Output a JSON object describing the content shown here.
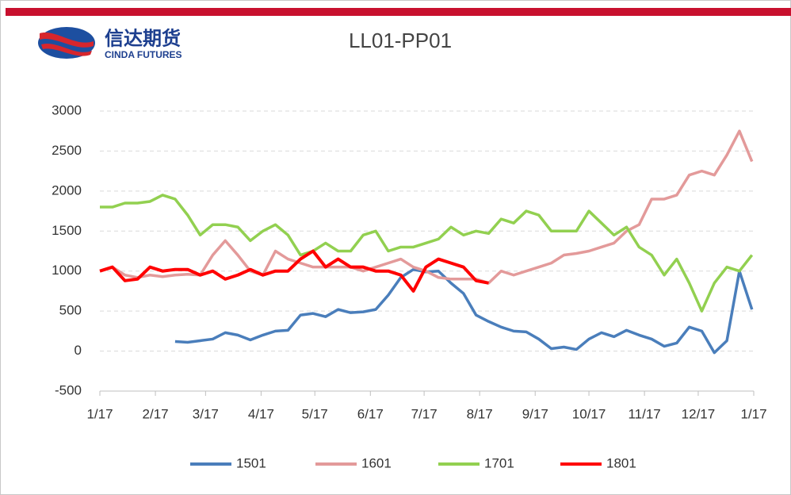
{
  "logo": {
    "name": "信达期货",
    "subname": "CINDA FUTURES"
  },
  "chart_data": {
    "type": "line",
    "title": "LL01-PP01",
    "x": [
      0,
      7,
      14,
      21,
      28,
      35,
      42,
      49,
      56,
      63,
      70,
      77,
      84,
      91,
      98,
      105,
      112,
      119,
      126,
      133,
      140,
      147,
      154,
      161,
      168,
      175,
      182,
      189,
      196,
      203,
      210,
      217,
      224,
      231,
      238,
      245,
      252,
      259,
      266,
      273,
      280,
      287,
      294,
      301,
      308,
      315,
      322,
      329,
      336,
      343,
      350,
      357,
      364
    ],
    "xlim": [
      0,
      365
    ],
    "xticks": [
      {
        "value": 0,
        "label": "1/17"
      },
      {
        "value": 31,
        "label": "2/17"
      },
      {
        "value": 59,
        "label": "3/17"
      },
      {
        "value": 90,
        "label": "4/17"
      },
      {
        "value": 120,
        "label": "5/17"
      },
      {
        "value": 151,
        "label": "6/17"
      },
      {
        "value": 181,
        "label": "7/17"
      },
      {
        "value": 212,
        "label": "8/17"
      },
      {
        "value": 243,
        "label": "9/17"
      },
      {
        "value": 273,
        "label": "10/17"
      },
      {
        "value": 304,
        "label": "11/17"
      },
      {
        "value": 334,
        "label": "12/17"
      },
      {
        "value": 365,
        "label": "1/17"
      }
    ],
    "ylim": [
      -500,
      3000
    ],
    "yticks": [
      -500,
      0,
      500,
      1000,
      1500,
      2000,
      2500,
      3000
    ],
    "grid": true,
    "legend": "bottom",
    "series": [
      {
        "name": "1501",
        "color": "#4a7ebb",
        "values": [
          null,
          null,
          null,
          null,
          null,
          null,
          120,
          110,
          130,
          150,
          230,
          200,
          140,
          200,
          250,
          260,
          450,
          470,
          430,
          520,
          480,
          490,
          520,
          700,
          920,
          1020,
          990,
          1000,
          850,
          720,
          450,
          370,
          300,
          250,
          240,
          150,
          30,
          50,
          20,
          150,
          230,
          180,
          260,
          200,
          150,
          60,
          100,
          300,
          250,
          -20,
          130,
          1000,
          520
        ]
      },
      {
        "name": "1601",
        "color": "#e39a9a",
        "values": [
          1000,
          1050,
          950,
          920,
          950,
          930,
          950,
          960,
          950,
          1200,
          1380,
          1200,
          1000,
          950,
          1250,
          1150,
          1100,
          1050,
          1050,
          1050,
          1050,
          1000,
          1050,
          1100,
          1150,
          1050,
          1000,
          920,
          900,
          900,
          900,
          850,
          1000,
          950,
          1000,
          1050,
          1100,
          1200,
          1220,
          1250,
          1300,
          1350,
          1500,
          1580,
          1900,
          1900,
          1950,
          2200,
          2250,
          2200,
          2450,
          2750,
          2370
        ]
      },
      {
        "name": "1701",
        "color": "#92d050",
        "values": [
          1800,
          1800,
          1850,
          1850,
          1870,
          1950,
          1900,
          1700,
          1450,
          1580,
          1580,
          1550,
          1380,
          1500,
          1580,
          1450,
          1200,
          1250,
          1350,
          1250,
          1250,
          1450,
          1500,
          1250,
          1300,
          1300,
          1350,
          1400,
          1550,
          1450,
          1500,
          1470,
          1650,
          1600,
          1750,
          1700,
          1500,
          1500,
          1500,
          1750,
          1600,
          1450,
          1550,
          1300,
          1200,
          950,
          1150,
          850,
          500,
          850,
          1050,
          1000,
          1200
        ]
      },
      {
        "name": "1801",
        "color": "#ff0000",
        "values": [
          1000,
          1050,
          880,
          900,
          1050,
          1000,
          1020,
          1020,
          950,
          1000,
          900,
          950,
          1020,
          950,
          1000,
          1000,
          1150,
          1250,
          1050,
          1150,
          1050,
          1050,
          1000,
          1000,
          950,
          750,
          1050,
          1150,
          1100,
          1050,
          880,
          850,
          null,
          null,
          null,
          null,
          null,
          null,
          null,
          null,
          null,
          null,
          null,
          null,
          null,
          null,
          null,
          null,
          null,
          null,
          null,
          null,
          null
        ]
      }
    ]
  }
}
